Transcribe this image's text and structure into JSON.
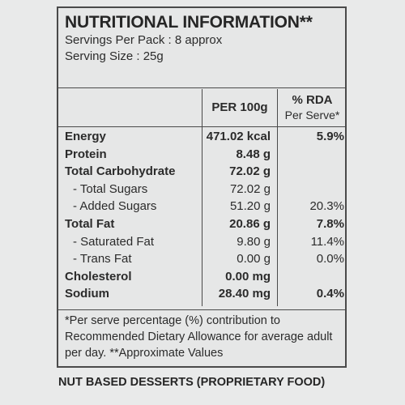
{
  "header": {
    "title": "NUTRITIONAL INFORMATION**",
    "servings": "Servings Per Pack : 8  approx",
    "serving_size": "Serving Size : 25g"
  },
  "columns": {
    "per100": "PER 100g",
    "rda_line1": "% RDA",
    "rda_line2": "Per Serve*"
  },
  "rows": [
    {
      "name": "Energy",
      "value": "471.02 kcal",
      "rda": "5.9%"
    },
    {
      "name": "Protein",
      "value": "8.48 g",
      "rda": ""
    },
    {
      "name": "Total Carbohydrate",
      "value": "72.02 g",
      "rda": ""
    },
    {
      "name": "- Total Sugars",
      "value": "72.02 g",
      "rda": ""
    },
    {
      "name": "- Added Sugars",
      "value": "51.20 g",
      "rda": "20.3%"
    },
    {
      "name": "Total Fat",
      "value": "20.86 g",
      "rda": "7.8%"
    },
    {
      "name": "- Saturated Fat",
      "value": "9.80 g",
      "rda": "11.4%"
    },
    {
      "name": "- Trans Fat",
      "value": "0.00 g",
      "rda": "0.0%"
    },
    {
      "name": "Cholesterol",
      "value": "0.00 mg",
      "rda": ""
    },
    {
      "name": "Sodium",
      "value": "28.40 mg",
      "rda": "0.4%"
    }
  ],
  "footnote": "*Per serve percentage (%) contribution to Recommended Dietary Allowance for average adult per day. **Approximate Values",
  "product_type": "NUT BASED DESSERTS (PROPRIETARY FOOD)"
}
